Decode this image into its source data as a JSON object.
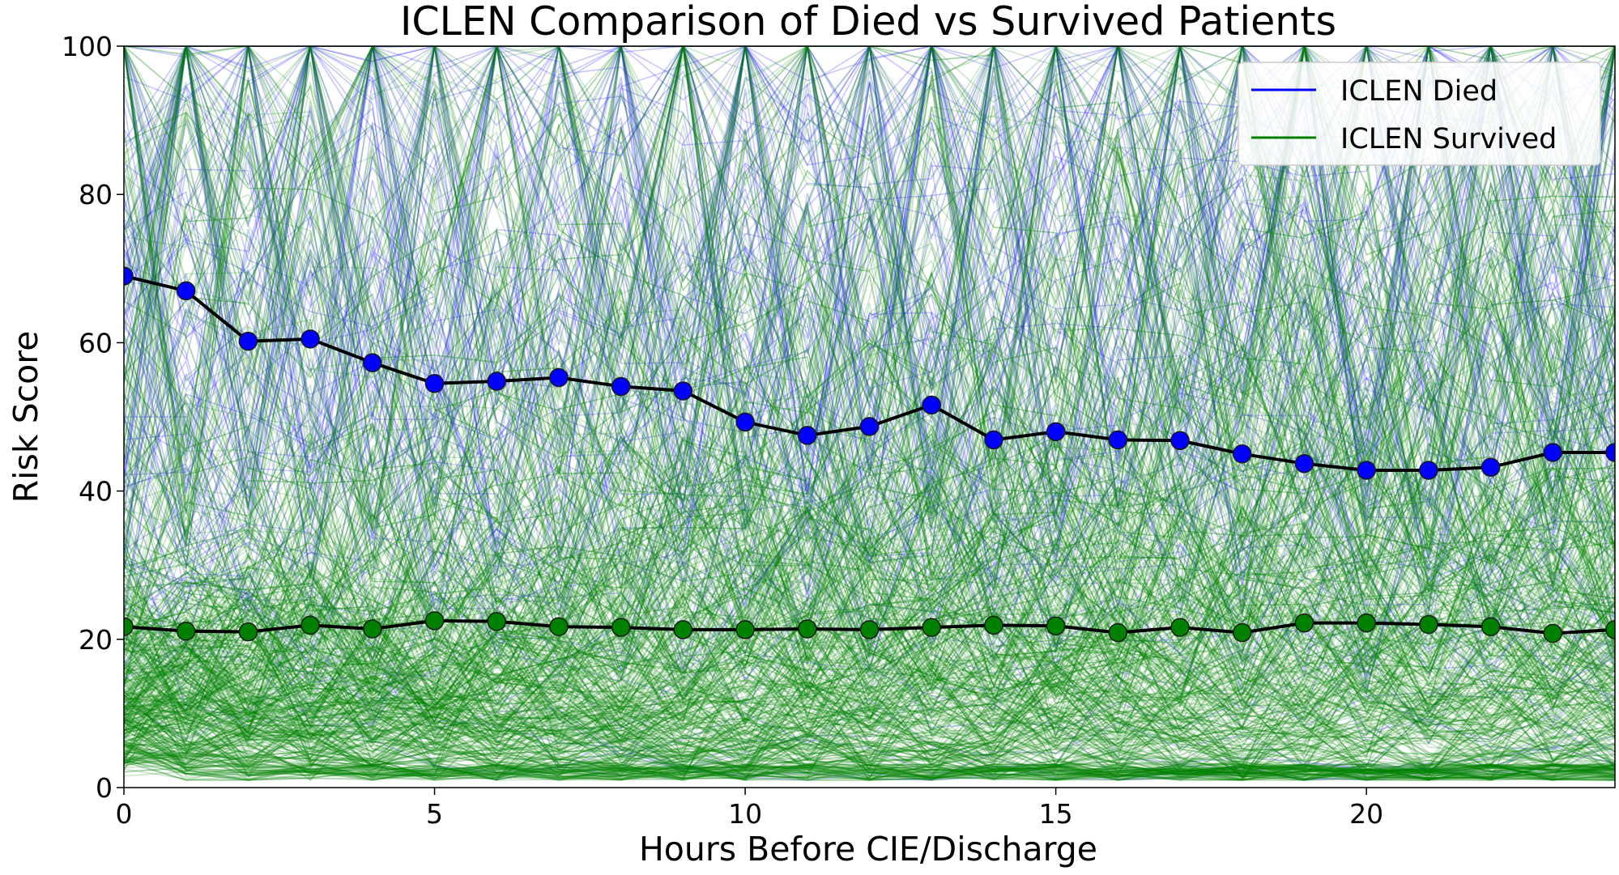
{
  "chart_data": {
    "type": "line",
    "title": "ICLEN Comparison of Died vs Survived Patients",
    "xlabel": "Hours Before CIE/Discharge",
    "ylabel": "Risk Score",
    "xlim": [
      0,
      24
    ],
    "ylim": [
      0,
      100
    ],
    "xticks": [
      0,
      5,
      10,
      15,
      20
    ],
    "yticks": [
      0,
      20,
      40,
      60,
      80,
      100
    ],
    "grid": false,
    "legend_position": "top-right",
    "x": [
      0,
      1,
      2,
      3,
      4,
      5,
      6,
      7,
      8,
      9,
      10,
      11,
      12,
      13,
      14,
      15,
      16,
      17,
      18,
      19,
      20,
      21,
      22,
      23,
      24
    ],
    "series": [
      {
        "name": "ICLEN Died",
        "color": "#0000ff",
        "values": [
          69.0,
          67.0,
          60.2,
          60.5,
          57.3,
          54.5,
          54.8,
          55.3,
          54.1,
          53.5,
          49.3,
          47.5,
          48.7,
          51.6,
          46.9,
          48.0,
          46.9,
          46.8,
          45.0,
          43.7,
          42.8,
          42.8,
          43.2,
          45.2,
          45.2
        ]
      },
      {
        "name": "ICLEN Survived",
        "color": "#008000",
        "values": [
          21.7,
          21.1,
          21.0,
          21.9,
          21.4,
          22.5,
          22.4,
          21.7,
          21.6,
          21.3,
          21.3,
          21.4,
          21.3,
          21.6,
          21.9,
          21.8,
          20.9,
          21.6,
          20.9,
          22.2,
          22.2,
          22.0,
          21.7,
          20.8,
          21.3
        ]
      }
    ]
  }
}
